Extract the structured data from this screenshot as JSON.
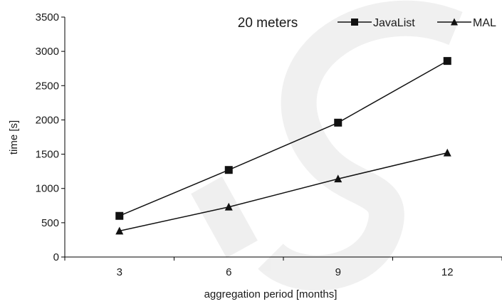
{
  "chart_data": {
    "type": "line",
    "title": "20 meters",
    "xlabel": "aggregation period [months]",
    "ylabel": "time [s]",
    "categories": [
      "3",
      "6",
      "9",
      "12"
    ],
    "ylim": [
      0,
      3500
    ],
    "yticks": [
      0,
      500,
      1000,
      1500,
      2000,
      2500,
      3000,
      3500
    ],
    "legend_position": "top-right",
    "grid": false,
    "series": [
      {
        "name": "JavaList",
        "marker": "square",
        "color": "#111111",
        "values": [
          600,
          1270,
          1960,
          2860
        ]
      },
      {
        "name": "MAL",
        "marker": "triangle",
        "color": "#111111",
        "values": [
          380,
          730,
          1140,
          1520
        ]
      }
    ]
  }
}
